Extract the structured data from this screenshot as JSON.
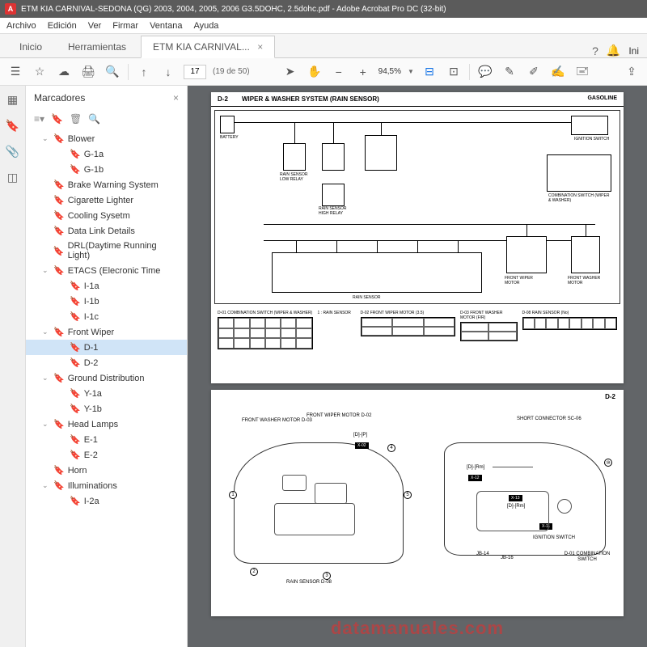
{
  "titlebar": {
    "appIcon": "A",
    "title": "ETM KIA CARNIVAL-SEDONA (QG) 2003, 2004, 2005, 2006 G3.5DOHC, 2.5dohc.pdf - Adobe Acrobat Pro DC (32-bit)"
  },
  "menubar": [
    "Archivo",
    "Edición",
    "Ver",
    "Firmar",
    "Ventana",
    "Ayuda"
  ],
  "tabs": {
    "inicio": "Inicio",
    "herramientas": "Herramientas",
    "active": "ETM KIA CARNIVAL...",
    "rightInicio": "Ini"
  },
  "toolbar": {
    "page": "17",
    "pageOf": "(19 de 50)",
    "zoom": "94,5%"
  },
  "bookmarks": {
    "title": "Marcadores",
    "items": [
      {
        "label": "Blower",
        "indent": 1,
        "expandable": true,
        "open": true
      },
      {
        "label": "G-1a",
        "indent": 2
      },
      {
        "label": "G-1b",
        "indent": 2
      },
      {
        "label": "Brake Warning System",
        "indent": 1
      },
      {
        "label": "Cigarette Lighter",
        "indent": 1
      },
      {
        "label": "Cooling Sysetm",
        "indent": 1
      },
      {
        "label": "Data Link Details",
        "indent": 1
      },
      {
        "label": "DRL(Daytime Running Light)",
        "indent": 1
      },
      {
        "label": "ETACS (Elecronic Time",
        "indent": 1,
        "expandable": true,
        "open": true
      },
      {
        "label": "I-1a",
        "indent": 2
      },
      {
        "label": "I-1b",
        "indent": 2
      },
      {
        "label": "I-1c",
        "indent": 2
      },
      {
        "label": "Front Wiper",
        "indent": 1,
        "expandable": true,
        "open": true
      },
      {
        "label": "D-1",
        "indent": 2,
        "selected": true
      },
      {
        "label": "D-2",
        "indent": 2
      },
      {
        "label": "Ground Distribution",
        "indent": 1,
        "expandable": true,
        "open": true
      },
      {
        "label": "Y-1a",
        "indent": 2
      },
      {
        "label": "Y-1b",
        "indent": 2
      },
      {
        "label": "Head Lamps",
        "indent": 1,
        "expandable": true,
        "open": true
      },
      {
        "label": "E-1",
        "indent": 2
      },
      {
        "label": "E-2",
        "indent": 2
      },
      {
        "label": "Horn",
        "indent": 1
      },
      {
        "label": "Illuminations",
        "indent": 1,
        "expandable": true,
        "open": true
      },
      {
        "label": "I-2a",
        "indent": 2
      }
    ]
  },
  "page1": {
    "num": "D-2",
    "title": "WIPER & WASHER SYSTEM (RAIN SENSOR)",
    "tag": "GASOLINE",
    "labels": {
      "battery": "BATTERY",
      "rainRelay": "RAIN SENSOR LOW RELAY",
      "highRelay": "RAIN SENSOR HIGH RELAY",
      "rainSensor": "RAIN SENSOR",
      "ignition": "IGNITION SWITCH",
      "combSwitch": "COMBINATION SWITCH (WIPER & WASHER)",
      "wiperMotor": "FRONT WIPER MOTOR",
      "washerMotor": "FRONT WASHER MOTOR"
    },
    "connectors": [
      {
        "label": "D-01 COMBINATION SWITCH (WIPER & WASHER)",
        "type": "big"
      },
      {
        "label": "1 : RAIN SENSOR",
        "type": "text"
      },
      {
        "label": "D-02 FRONT WIPER MOTOR (3.5)",
        "type": "sm"
      },
      {
        "label": "D-03 FRONT WASHER MOTOR (F/R)",
        "type": "sm"
      },
      {
        "label": "D-08 RAIN SENSOR (No)",
        "type": "long"
      }
    ]
  },
  "page2": {
    "num": "D-2",
    "labels": {
      "washerMotor": "FRONT\nWASHER MOTOR\nD-03",
      "wiperMotor": "FRONT\nWIPER MOTOR\nD-02",
      "shortConn": "SHORT\nCONNECTOR\nSC-06",
      "rainSensor": "RAIN SENSOR\nD-08",
      "ignitionSwitch": "IGNITION\nSWITCH",
      "combSwitch": "D-01\nCOMBINATION\nSWITCH",
      "jb14": "JB-14",
      "jb16": "JB-16"
    },
    "tags": {
      "x02": "X-02",
      "x12": "X-12",
      "x13": "X-13",
      "x11": "X-11",
      "dp": "[D]-[P]",
      "drm": "[D]-[Rm]",
      "drm2": "[D]-[Rm]"
    }
  },
  "watermark": "datamanuales.com"
}
